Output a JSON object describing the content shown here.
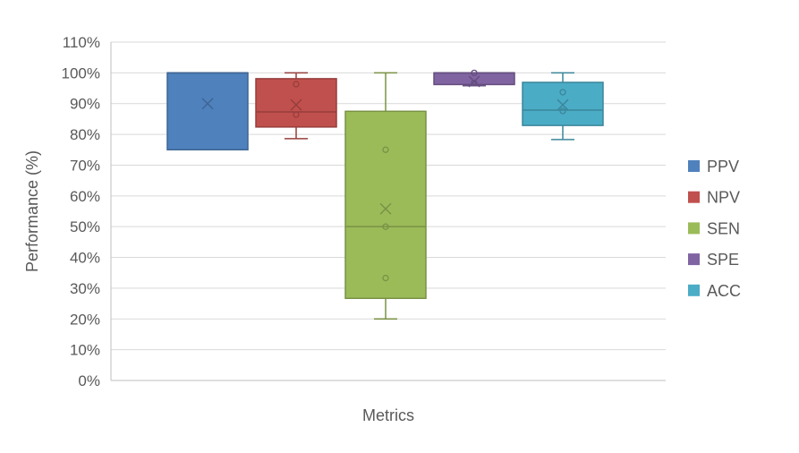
{
  "chart_data": {
    "type": "box",
    "title": "",
    "xlabel": "Metrics",
    "ylabel": "Performance (%)",
    "ylim": [
      0,
      110
    ],
    "ytick_step": 10,
    "yticks": [
      "0%",
      "10%",
      "20%",
      "30%",
      "40%",
      "50%",
      "60%",
      "70%",
      "80%",
      "90%",
      "100%",
      "110%"
    ],
    "grid": true,
    "legend_position": "right",
    "series": [
      {
        "name": "PPV",
        "color": "#4F81BD",
        "min": 75,
        "q1": 75,
        "median": 100,
        "q3": 100,
        "max": 100,
        "mean": 90,
        "points": []
      },
      {
        "name": "NPV",
        "color": "#C0504D",
        "min": 78.6,
        "q1": 82.4,
        "median": 87.3,
        "q3": 98.1,
        "max": 100,
        "mean": 89.6,
        "points": [
          96.3,
          86.4
        ]
      },
      {
        "name": "SEN",
        "color": "#9BBB59",
        "min": 20,
        "q1": 26.7,
        "median": 50,
        "q3": 87.5,
        "max": 100,
        "mean": 55.8,
        "points": [
          75,
          50,
          33.3
        ]
      },
      {
        "name": "SPE",
        "color": "#8064A2",
        "min": 95.8,
        "q1": 96.2,
        "median": 100,
        "q3": 100,
        "max": 100,
        "mean": 97.2,
        "points": [
          100,
          96.7
        ]
      },
      {
        "name": "ACC",
        "color": "#4BACC6",
        "min": 78.3,
        "q1": 82.9,
        "median": 87.9,
        "q3": 96.9,
        "max": 100,
        "mean": 89.6,
        "points": [
          93.7,
          87.6
        ]
      }
    ]
  }
}
